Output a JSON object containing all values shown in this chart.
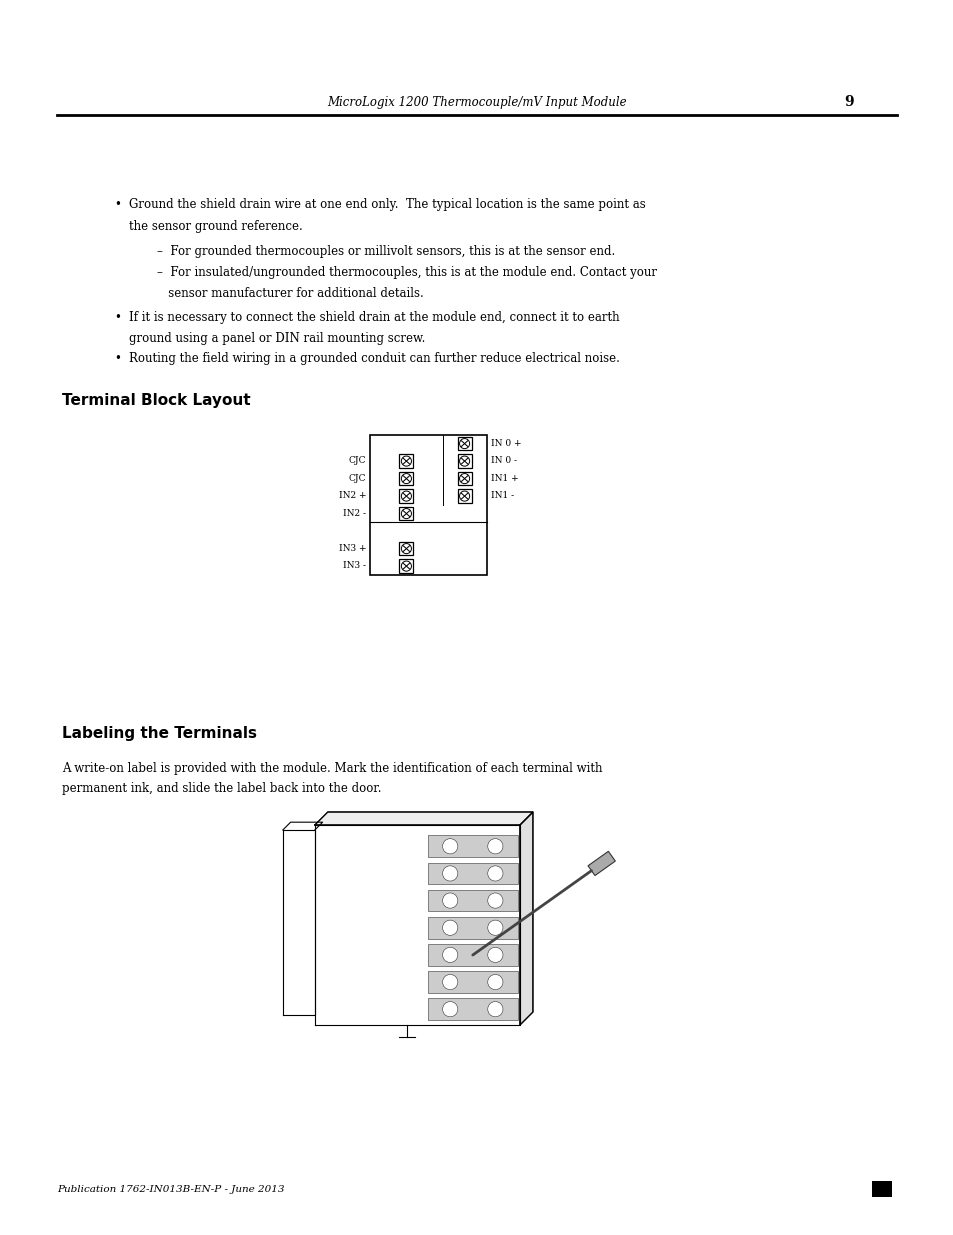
{
  "page_width": 9.54,
  "page_height": 12.35,
  "bg_color": "#ffffff",
  "header_text": "MicroLogix 1200 Thermocouple/mV Input Module",
  "header_page_num": "9",
  "footer_text": "Publication 1762-IN013B-EN-P - June 2013",
  "section1_title": "Terminal Block Layout",
  "section2_title": "Labeling the Terminals",
  "section2_body_line1": "A write-on label is provided with the module. Mark the identification of each terminal with",
  "section2_body_line2": "permanent ink, and slide the label back into the door.",
  "bullet1_line1": "Ground the shield drain wire at one end only.  The typical location is the same point as",
  "bullet1_line2": "the sensor ground reference.",
  "sub1": "–  For grounded thermocouples or millivolt sensors, this is at the sensor end.",
  "sub2_line1": "–  For insulated/ungrounded thermocouples, this is at the module end. Contact your",
  "sub2_line2": "   sensor manufacturer for additional details.",
  "bullet2_line1": "If it is necessary to connect the shield drain at the module end, connect it to earth",
  "bullet2_line2": "ground using a panel or DIN rail mounting screw.",
  "bullet3": "Routing the field wiring in a grounded conduit can further reduce electrical noise.",
  "left_screws": [
    [
      1,
      "CJC"
    ],
    [
      2,
      "CJC"
    ],
    [
      3,
      "IN2 +"
    ],
    [
      4,
      "IN2 -"
    ],
    [
      6,
      "IN3 +"
    ],
    [
      7,
      "IN3 -"
    ]
  ],
  "right_screws": [
    [
      0,
      "IN 0 +"
    ],
    [
      1,
      "IN 0 -"
    ],
    [
      2,
      "IN1 +"
    ],
    [
      3,
      "IN1 -"
    ]
  ]
}
